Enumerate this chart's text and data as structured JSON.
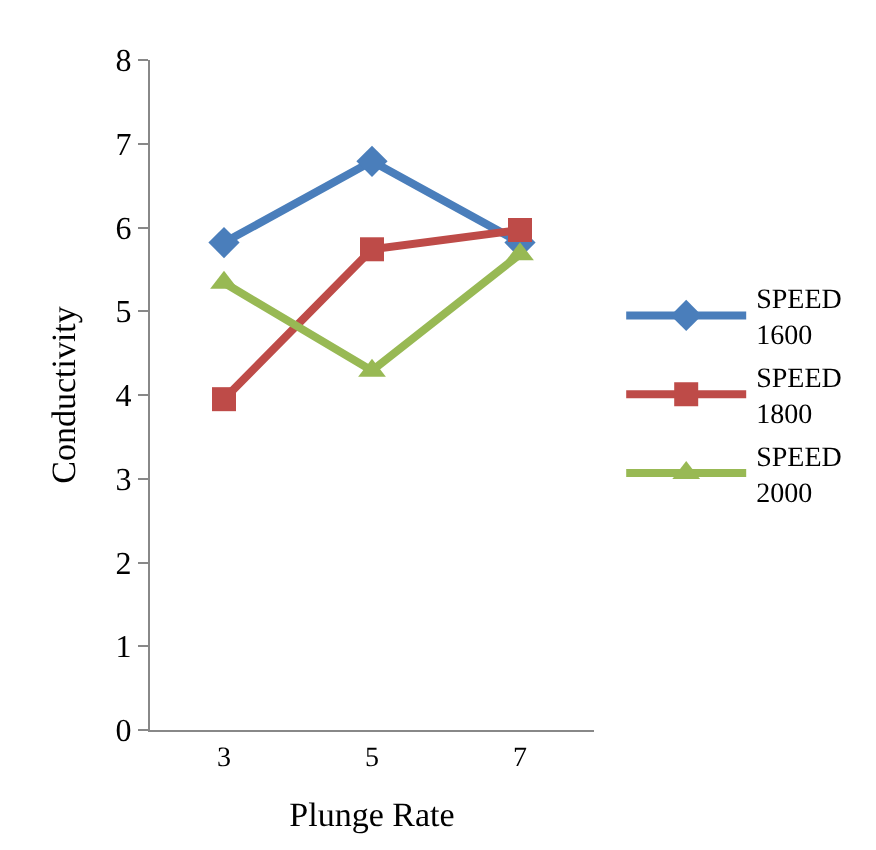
{
  "chart_data": {
    "type": "line",
    "xlabel": "Plunge Rate",
    "ylabel": "Conductivity",
    "categories": [
      "3",
      "5",
      "7"
    ],
    "series": [
      {
        "name": "SPEED 1600",
        "color": "#4a7ebb",
        "marker": "diamond",
        "values": [
          5.82,
          6.79,
          5.82
        ]
      },
      {
        "name": "SPEED 1800",
        "color": "#be4b48",
        "marker": "square",
        "values": [
          3.95,
          5.74,
          5.97
        ]
      },
      {
        "name": "SPEED 2000",
        "color": "#98b954",
        "marker": "triangle",
        "values": [
          5.34,
          4.29,
          5.68
        ]
      }
    ],
    "ylim": [
      0,
      8
    ],
    "yticks": [
      0,
      1,
      2,
      3,
      4,
      5,
      6,
      7,
      8
    ],
    "legend": "right"
  }
}
